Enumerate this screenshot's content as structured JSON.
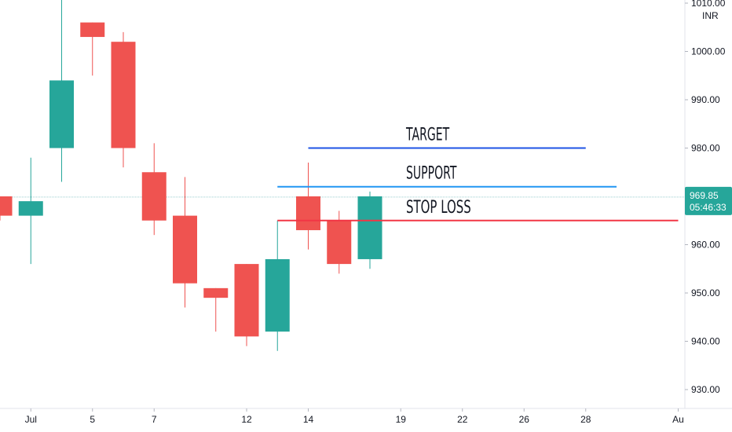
{
  "chart_data": {
    "type": "candlestick",
    "currency": "INR",
    "y_axis": {
      "range": [
        927,
        1011
      ],
      "ticks": [
        "1010.00",
        "1000.00",
        "990.00",
        "980.00",
        "970.00",
        "960.00",
        "950.00",
        "940.00",
        "930.00"
      ],
      "tick_values": [
        1010,
        1000,
        990,
        980,
        970,
        960,
        950,
        940,
        930
      ]
    },
    "x_axis": {
      "labels": [
        "Jul",
        "5",
        "7",
        "12",
        "14",
        "19",
        "22",
        "26",
        "28",
        "Au"
      ],
      "label_positions": [
        1,
        3,
        5,
        8,
        10,
        13,
        15,
        17,
        19,
        22
      ]
    },
    "candles": [
      {
        "i": 0,
        "open": 970,
        "high": 970,
        "low": 965,
        "close": 966
      },
      {
        "i": 1,
        "open": 966,
        "high": 978,
        "low": 956,
        "close": 969
      },
      {
        "i": 2,
        "open": 980,
        "high": 1011,
        "low": 973,
        "close": 994
      },
      {
        "i": 3,
        "open": 1006,
        "high": 1006,
        "low": 995,
        "close": 1003
      },
      {
        "i": 4,
        "open": 1002,
        "high": 1004,
        "low": 976,
        "close": 980
      },
      {
        "i": 5,
        "open": 975,
        "high": 981,
        "low": 962,
        "close": 965
      },
      {
        "i": 6,
        "open": 966,
        "high": 974,
        "low": 947,
        "close": 952
      },
      {
        "i": 7,
        "open": 951,
        "high": 951,
        "low": 942,
        "close": 949
      },
      {
        "i": 8,
        "open": 956,
        "high": 956,
        "low": 939,
        "close": 941
      },
      {
        "i": 9,
        "open": 942,
        "high": 965,
        "low": 938,
        "close": 957
      },
      {
        "i": 10,
        "open": 970,
        "high": 977,
        "low": 959,
        "close": 963
      },
      {
        "i": 11,
        "open": 965,
        "high": 967,
        "low": 954,
        "close": 956
      },
      {
        "i": 12,
        "open": 957,
        "high": 971,
        "low": 955,
        "close": 970
      }
    ],
    "colors": {
      "up": "#26a69a",
      "down": "#ef5350"
    },
    "horizontal_lines": [
      {
        "name": "TARGET",
        "label": "TARGET",
        "price": 980,
        "color": "#1e53e5",
        "x_start": 10,
        "x_end": 19
      },
      {
        "name": "SUPPORT",
        "label": "SUPPORT",
        "price": 972,
        "color": "#2196f3",
        "x_start": 9,
        "x_end": 20
      },
      {
        "name": "STOP LOSS",
        "label": "STOP LOSS",
        "price": 965,
        "color": "#f23645",
        "x_start": 9,
        "x_end": 22
      }
    ],
    "last_price": {
      "price": "969.85",
      "value": 969.85,
      "countdown": "05:46:33",
      "color": "#26a69a"
    }
  }
}
